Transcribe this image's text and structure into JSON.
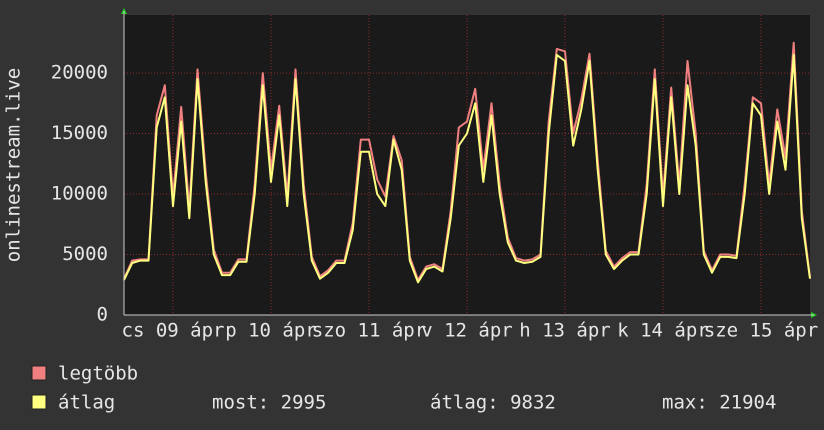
{
  "chart_data": {
    "type": "line",
    "y_label": "onlinestream.live",
    "x": [
      0,
      2,
      4,
      6,
      8,
      10,
      12,
      14,
      16,
      18,
      20,
      22,
      24,
      26,
      28,
      30,
      32,
      34,
      36,
      38,
      40,
      42,
      44,
      46,
      48,
      50,
      52,
      54,
      56,
      58,
      60,
      62,
      64,
      66,
      68,
      70,
      72,
      74,
      76,
      78,
      80,
      82,
      84,
      86,
      88,
      90,
      92,
      94,
      96,
      98,
      100,
      102,
      104,
      106,
      108,
      110,
      112,
      114,
      116,
      118,
      120,
      122,
      124,
      126,
      128,
      130,
      132,
      134,
      136,
      138,
      140,
      142,
      144,
      146,
      148,
      150,
      152,
      154,
      156,
      158,
      160,
      162,
      164,
      166,
      168
    ],
    "xlim": [
      0,
      168
    ],
    "xticks": [
      {
        "value": 12,
        "label": "cs 09 ápr"
      },
      {
        "value": 36,
        "label": "p 10 ápr"
      },
      {
        "value": 60,
        "label": "szo 11 ápr"
      },
      {
        "value": 84,
        "label": "v 12 ápr"
      },
      {
        "value": 108,
        "label": "h 13 ápr"
      },
      {
        "value": 132,
        "label": "k 14 ápr"
      },
      {
        "value": 156,
        "label": "sze 15 ápr"
      }
    ],
    "ylim": [
      0,
      24800
    ],
    "yticks": [
      0,
      5000,
      10000,
      15000,
      20000
    ],
    "grid": true,
    "series": [
      {
        "name": "legtöbb",
        "color": "#f08080",
        "values": [
          3000,
          4500,
          4600,
          4600,
          16500,
          19000,
          9800,
          17200,
          8800,
          20300,
          11800,
          5400,
          3500,
          3500,
          4600,
          4600,
          10800,
          20000,
          12000,
          17300,
          9800,
          20300,
          10800,
          4800,
          3200,
          3700,
          4500,
          4500,
          7600,
          14500,
          14500,
          11200,
          9800,
          14800,
          12800,
          4800,
          2900,
          4000,
          4200,
          3800,
          8600,
          15500,
          16000,
          18700,
          12000,
          17500,
          10800,
          6400,
          4700,
          4500,
          4600,
          5000,
          16000,
          22000,
          21800,
          15000,
          17800,
          21600,
          12800,
          5300,
          4000,
          4700,
          5200,
          5200,
          10800,
          20300,
          9800,
          18800,
          10800,
          21000,
          15000,
          5300,
          3700,
          5000,
          5000,
          4900,
          10800,
          18000,
          17500,
          10800,
          17000,
          13000,
          22500,
          8600,
          3100
        ]
      },
      {
        "name": "átlag",
        "color": "#ffff80",
        "values": [
          2900,
          4300,
          4500,
          4500,
          15500,
          18000,
          9000,
          16000,
          8000,
          19500,
          11000,
          5000,
          3300,
          3300,
          4400,
          4400,
          10000,
          19000,
          11000,
          16500,
          9000,
          19500,
          10000,
          4500,
          3000,
          3500,
          4300,
          4300,
          7000,
          13500,
          13500,
          10000,
          9000,
          14500,
          12000,
          4500,
          2700,
          3800,
          4000,
          3600,
          8000,
          14000,
          15000,
          17500,
          11000,
          16500,
          10000,
          6000,
          4500,
          4300,
          4400,
          4800,
          15000,
          21500,
          21000,
          14000,
          17000,
          21000,
          12000,
          5000,
          3800,
          4500,
          5000,
          5000,
          10000,
          19500,
          9000,
          18000,
          10000,
          19000,
          14000,
          5000,
          3500,
          4800,
          4800,
          4700,
          10000,
          17500,
          16500,
          10000,
          16000,
          12000,
          21500,
          8000,
          2995
        ]
      }
    ],
    "stats": [
      "most: 2995",
      "átlag: 9832",
      "max: 21904"
    ]
  }
}
